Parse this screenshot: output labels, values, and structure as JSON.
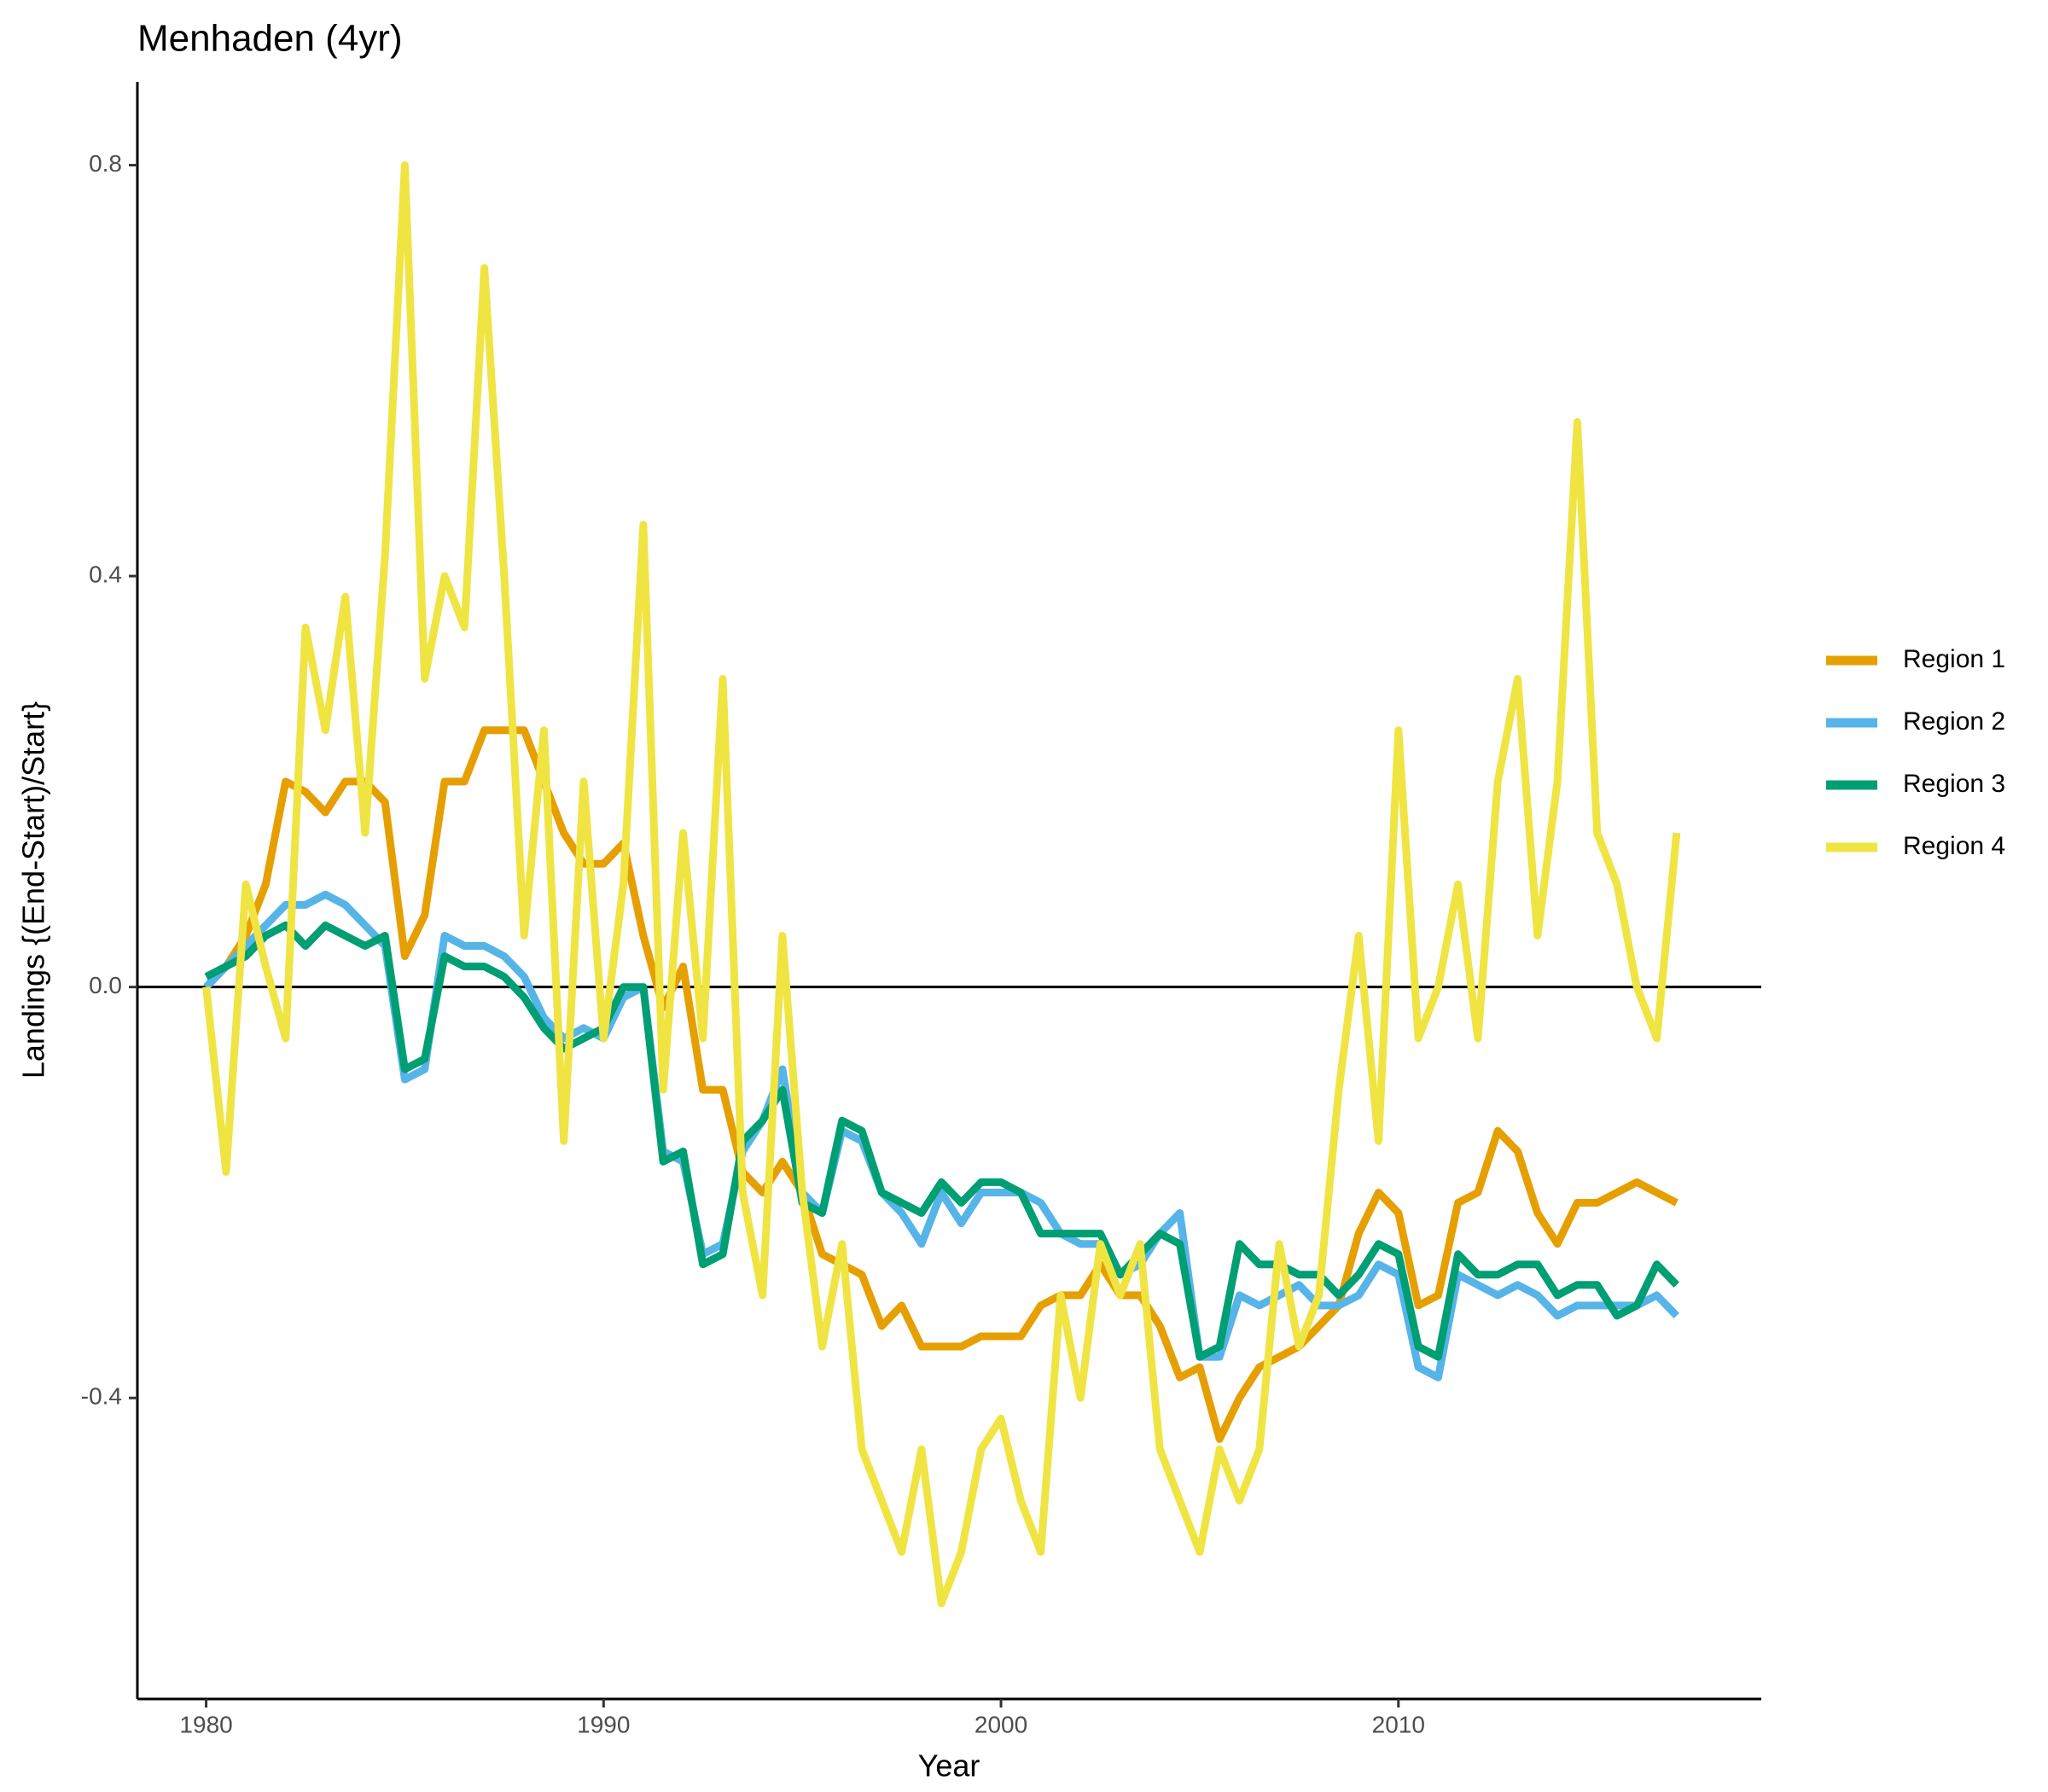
{
  "chart_data": {
    "type": "line",
    "title": "Menhaden (4yr)",
    "x_label": "Year",
    "y_label": "Landings {(End-Start)/Start}",
    "x": [
      1980,
      1980.5,
      1981,
      1981.5,
      1982,
      1982.5,
      1983,
      1983.5,
      1984,
      1984.5,
      1985,
      1985.5,
      1986,
      1986.5,
      1987,
      1987.5,
      1988,
      1988.5,
      1989,
      1989.5,
      1990,
      1990.5,
      1991,
      1991.5,
      1992,
      1992.5,
      1993,
      1993.5,
      1994,
      1994.5,
      1995,
      1995.5,
      1996,
      1996.5,
      1997,
      1997.5,
      1998,
      1998.5,
      1999,
      1999.5,
      2000,
      2000.5,
      2001,
      2001.5,
      2002,
      2002.5,
      2003,
      2003.5,
      2004,
      2004.5,
      2005,
      2005.5,
      2006,
      2006.5,
      2007,
      2007.5,
      2008,
      2008.5,
      2009,
      2009.5,
      2010,
      2010.5,
      2011,
      2011.5,
      2012,
      2012.5,
      2013,
      2013.5,
      2014,
      2014.5,
      2015,
      2015.5,
      2016,
      2016.5,
      2017
    ],
    "series": [
      {
        "name": "Region 1",
        "color": "#E69F00",
        "values": [
          0,
          0.02,
          0.05,
          0.1,
          0.2,
          0.19,
          0.17,
          0.2,
          0.2,
          0.18,
          0.03,
          0.07,
          0.2,
          0.2,
          0.25,
          0.25,
          0.25,
          0.2,
          0.15,
          0.12,
          0.12,
          0.14,
          0.05,
          -0.02,
          0.02,
          -0.1,
          -0.1,
          -0.18,
          -0.2,
          -0.17,
          -0.2,
          -0.26,
          -0.27,
          -0.28,
          -0.33,
          -0.31,
          -0.35,
          -0.35,
          -0.35,
          -0.34,
          -0.34,
          -0.34,
          -0.31,
          -0.3,
          -0.3,
          -0.27,
          -0.3,
          -0.3,
          -0.33,
          -0.38,
          -0.37,
          -0.44,
          -0.4,
          -0.37,
          -0.36,
          -0.35,
          -0.33,
          -0.31,
          -0.24,
          -0.2,
          -0.22,
          -0.31,
          -0.3,
          -0.21,
          -0.2,
          -0.14,
          -0.16,
          -0.22,
          -0.25,
          -0.21,
          -0.21,
          -0.2,
          -0.19,
          -0.2,
          -0.21
        ]
      },
      {
        "name": "Region 2",
        "color": "#56B4E9",
        "values": [
          0,
          0.02,
          0.04,
          0.06,
          0.08,
          0.08,
          0.09,
          0.08,
          0.06,
          0.04,
          -0.09,
          -0.08,
          0.05,
          0.04,
          0.04,
          0.03,
          0.01,
          -0.03,
          -0.05,
          -0.04,
          -0.05,
          -0.01,
          0,
          -0.16,
          -0.17,
          -0.26,
          -0.25,
          -0.16,
          -0.13,
          -0.08,
          -0.2,
          -0.22,
          -0.14,
          -0.15,
          -0.2,
          -0.22,
          -0.25,
          -0.2,
          -0.23,
          -0.2,
          -0.2,
          -0.2,
          -0.21,
          -0.24,
          -0.25,
          -0.25,
          -0.28,
          -0.27,
          -0.24,
          -0.22,
          -0.36,
          -0.36,
          -0.3,
          -0.31,
          -0.3,
          -0.29,
          -0.31,
          -0.31,
          -0.3,
          -0.27,
          -0.28,
          -0.37,
          -0.38,
          -0.28,
          -0.29,
          -0.3,
          -0.29,
          -0.3,
          -0.32,
          -0.31,
          -0.31,
          -0.31,
          -0.31,
          -0.3,
          -0.32
        ]
      },
      {
        "name": "Region 3",
        "color": "#009E73",
        "values": [
          0.01,
          0.02,
          0.03,
          0.05,
          0.06,
          0.04,
          0.06,
          0.05,
          0.04,
          0.05,
          -0.08,
          -0.07,
          0.03,
          0.02,
          0.02,
          0.01,
          -0.01,
          -0.04,
          -0.06,
          -0.05,
          -0.04,
          0,
          0,
          -0.17,
          -0.16,
          -0.27,
          -0.26,
          -0.15,
          -0.13,
          -0.1,
          -0.21,
          -0.22,
          -0.13,
          -0.14,
          -0.2,
          -0.21,
          -0.22,
          -0.19,
          -0.21,
          -0.19,
          -0.19,
          -0.2,
          -0.24,
          -0.24,
          -0.24,
          -0.24,
          -0.28,
          -0.26,
          -0.24,
          -0.25,
          -0.36,
          -0.35,
          -0.25,
          -0.27,
          -0.27,
          -0.28,
          -0.28,
          -0.3,
          -0.28,
          -0.25,
          -0.26,
          -0.35,
          -0.36,
          -0.26,
          -0.28,
          -0.28,
          -0.27,
          -0.27,
          -0.3,
          -0.29,
          -0.29,
          -0.32,
          -0.31,
          -0.27,
          -0.29
        ]
      },
      {
        "name": "Region 4",
        "color": "#F0E442",
        "values": [
          0,
          -0.18,
          0.1,
          0.02,
          -0.05,
          0.35,
          0.25,
          0.38,
          0.15,
          0.42,
          0.8,
          0.3,
          0.4,
          0.35,
          0.7,
          0.4,
          0.05,
          0.25,
          -0.15,
          0.2,
          -0.05,
          0.1,
          0.45,
          -0.1,
          0.15,
          -0.05,
          0.3,
          -0.2,
          -0.3,
          0.05,
          -0.2,
          -0.35,
          -0.25,
          -0.45,
          -0.5,
          -0.55,
          -0.45,
          -0.6,
          -0.55,
          -0.45,
          -0.42,
          -0.5,
          -0.55,
          -0.3,
          -0.4,
          -0.25,
          -0.3,
          -0.25,
          -0.45,
          -0.5,
          -0.55,
          -0.45,
          -0.5,
          -0.45,
          -0.25,
          -0.35,
          -0.3,
          -0.1,
          0.05,
          -0.15,
          0.25,
          -0.05,
          0,
          0.1,
          -0.05,
          0.2,
          0.3,
          0.05,
          0.2,
          0.55,
          0.15,
          0.1,
          0,
          -0.05,
          0.15
        ]
      }
    ],
    "xlim": [
      1978.27,
      2019.13
    ],
    "ylim": [
      -0.693,
      0.881
    ],
    "xticks": [
      1980,
      1990,
      2000,
      2010
    ],
    "yticks": [
      -0.4,
      {
        "value": 0,
        "label": "0.0"
      },
      0.4,
      0.8
    ],
    "hline": 0,
    "legend": "right"
  }
}
